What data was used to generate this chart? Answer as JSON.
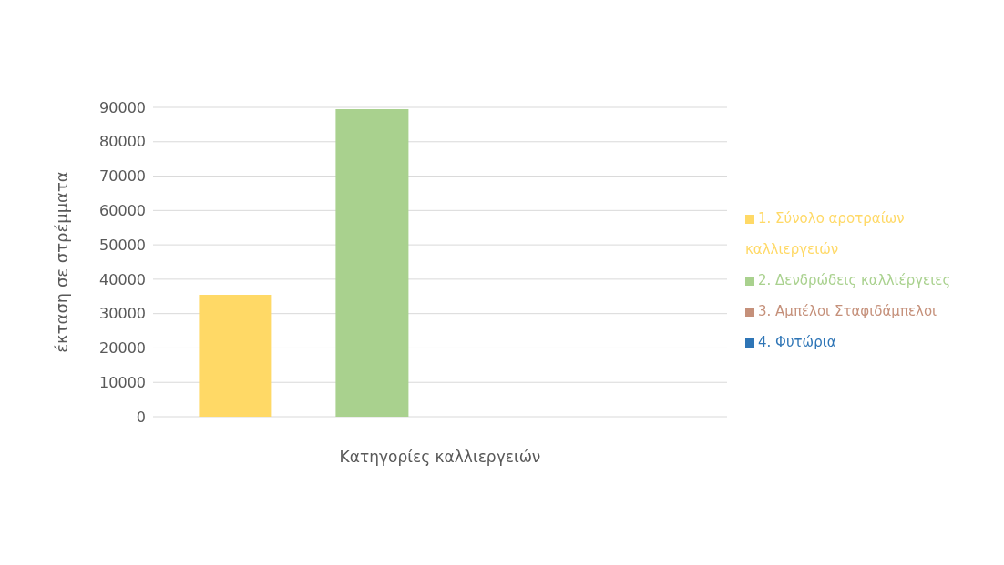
{
  "chart_data": {
    "type": "bar",
    "xlabel": "Κατηγορίες καλλιεργειών",
    "ylabel": "έκταση σε στρέμματα",
    "categories": [
      null
    ],
    "series": [
      {
        "name": "1. Σύνολο αροτραίων καλλιεργειών",
        "color": "#ffd966",
        "values": [
          35500
        ]
      },
      {
        "name": "2. Δενδρώδεις καλλιέργειες",
        "color": "#a9d18e",
        "values": [
          89500
        ]
      },
      {
        "name": "3. Αμπέλοι Σταφιδάμπελοι",
        "color": "#c5907a",
        "values": [
          0
        ]
      },
      {
        "name": "4. Φυτώρια",
        "color": "#2e75b6",
        "values": [
          0
        ]
      }
    ],
    "ylim": [
      0,
      90000
    ],
    "yticks": [
      0,
      10000,
      20000,
      30000,
      40000,
      50000,
      60000,
      70000,
      80000,
      90000
    ],
    "grid": "y",
    "legend": "right"
  }
}
